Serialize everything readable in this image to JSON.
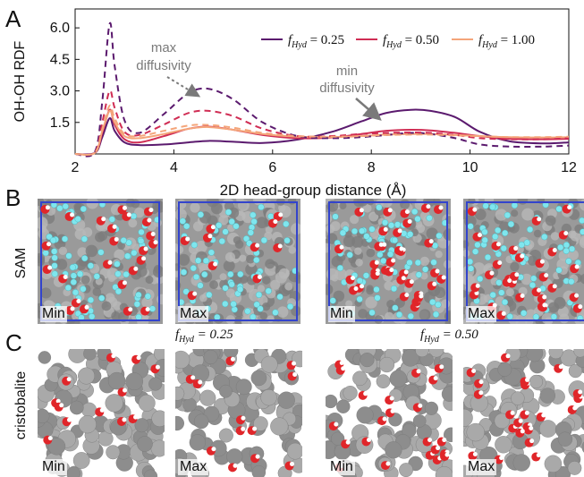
{
  "panels": {
    "a": "A",
    "b": "B",
    "c": "C"
  },
  "chart_data": {
    "type": "line",
    "ylabel": "OH-OH RDF",
    "xlabel": "2D head-group distance (Å)",
    "xlim": [
      2,
      12
    ],
    "ylim": [
      0,
      6.9
    ],
    "xticks": [
      2,
      4,
      6,
      8,
      10,
      12
    ],
    "yticks": [
      1.5,
      3.0,
      4.5,
      6.0
    ],
    "grid": false,
    "legend_position": "top-right",
    "legend": [
      "f_Hyd = 0.25",
      "f_Hyd = 0.50",
      "f_Hyd = 1.00"
    ],
    "legend_display": [
      "= 0.25",
      "= 0.50",
      "= 1.00"
    ],
    "series_styles": [
      "solid",
      "dashed"
    ],
    "x": [
      2.0,
      2.4,
      2.55,
      2.7,
      2.8,
      3.0,
      3.3,
      3.8,
      4.3,
      4.7,
      5.2,
      5.8,
      6.5,
      7.2,
      7.8,
      8.3,
      8.8,
      9.2,
      9.7,
      10.2,
      10.8,
      11.5,
      12.0
    ],
    "series": [
      {
        "color": "#5b1a6e",
        "style": "solid",
        "values": [
          0,
          0.05,
          0.8,
          1.7,
          1.1,
          0.55,
          0.42,
          0.45,
          0.55,
          0.62,
          0.58,
          0.52,
          0.68,
          1.05,
          1.55,
          1.95,
          2.1,
          2.05,
          1.75,
          1.05,
          0.6,
          0.5,
          0.55
        ]
      },
      {
        "color": "#d02d54",
        "style": "solid",
        "values": [
          0,
          0.05,
          1.0,
          2.1,
          1.4,
          0.7,
          0.55,
          0.85,
          1.2,
          1.3,
          1.15,
          0.9,
          0.75,
          0.78,
          0.95,
          1.1,
          1.15,
          1.12,
          1.0,
          0.85,
          0.72,
          0.7,
          0.72
        ]
      },
      {
        "color": "#f4a57a",
        "style": "solid",
        "values": [
          0,
          0.05,
          1.1,
          2.05,
          1.5,
          0.85,
          0.75,
          0.95,
          1.2,
          1.28,
          1.15,
          0.95,
          0.82,
          0.8,
          0.85,
          0.92,
          0.95,
          0.95,
          0.9,
          0.85,
          0.8,
          0.78,
          0.8
        ]
      },
      {
        "color": "#5b1a6e",
        "style": "dashed",
        "values": [
          0,
          0.1,
          2.5,
          6.2,
          4.2,
          1.6,
          1.0,
          1.9,
          2.9,
          3.1,
          2.6,
          1.5,
          0.85,
          0.75,
          0.8,
          0.9,
          1.0,
          0.95,
          0.75,
          0.45,
          0.35,
          0.35,
          0.4
        ]
      },
      {
        "color": "#d02d54",
        "style": "dashed",
        "values": [
          0,
          0.08,
          1.5,
          3.0,
          2.2,
          1.05,
          0.9,
          1.4,
          1.95,
          2.05,
          1.8,
          1.2,
          0.85,
          0.85,
          0.95,
          1.0,
          1.02,
          1.0,
          0.9,
          0.75,
          0.7,
          0.7,
          0.75
        ]
      },
      {
        "color": "#f4a57a",
        "style": "dashed",
        "values": [
          0,
          0.06,
          1.2,
          2.3,
          1.7,
          0.95,
          0.85,
          1.1,
          1.35,
          1.38,
          1.25,
          1.0,
          0.85,
          0.82,
          0.85,
          0.9,
          0.92,
          0.92,
          0.88,
          0.84,
          0.8,
          0.8,
          0.82
        ]
      }
    ],
    "annotations": [
      {
        "lines": [
          "max",
          "diffusivity"
        ],
        "arrow_to_x": 4.55,
        "arrow_to_y": 3.05
      },
      {
        "lines": [
          "min",
          "diffusivity"
        ],
        "arrow_to_x": 8.25,
        "arrow_to_y": 1.55
      }
    ]
  },
  "row_labels": {
    "sam": "SAM",
    "cristobalite": "cristobalite"
  },
  "fhyd_labels": [
    "= 0.25",
    "= 0.50"
  ],
  "snapshots": {
    "sam": [
      "Min",
      "Max",
      "Min",
      "Max"
    ],
    "cristobalite": [
      "Min",
      "Max",
      "Min",
      "Max"
    ]
  },
  "colors": {
    "sam_bg": "#9a9a9a",
    "sam_frame": "#3344cc",
    "cristo_bg": "#9c9c9c",
    "water_o": "#e0262a",
    "water_h": "#ffffff",
    "cyan": "#7fe6ee"
  }
}
